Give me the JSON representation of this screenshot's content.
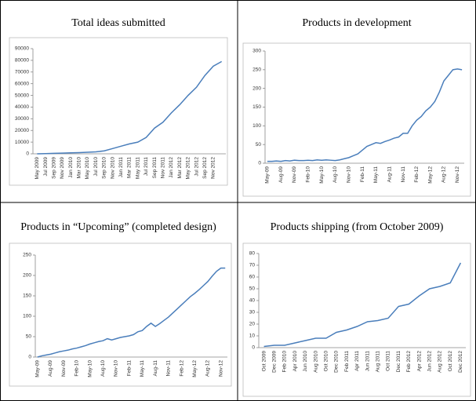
{
  "chart_data": [
    {
      "type": "line",
      "title": "Total ideas submitted",
      "color": "#4a7ebb",
      "categories": [
        "May 2009",
        "Jul 2009",
        "Sep 2009",
        "Nov 2009",
        "Jan 2010",
        "Mar 2010",
        "May 2010",
        "Jul 2010",
        "Sep 2010",
        "Nov 2010",
        "Jan 2011",
        "Mar 2011",
        "May 2011",
        "Jul 2011",
        "Sep 2011",
        "Nov 2011",
        "Jan 2012",
        "Mar 2012",
        "May 2012",
        "Jul 2012",
        "Sep 2012",
        "Nov 2012",
        null
      ],
      "values": [
        0,
        200,
        400,
        600,
        800,
        1000,
        1300,
        1700,
        2500,
        4500,
        6500,
        8500,
        10000,
        14000,
        22000,
        27000,
        35000,
        42000,
        50000,
        57000,
        67000,
        75000,
        79000
      ],
      "ylim": [
        0,
        90000
      ],
      "yticks": [
        0,
        10000,
        20000,
        30000,
        40000,
        50000,
        60000,
        70000,
        80000,
        90000
      ]
    },
    {
      "type": "line",
      "title": "Products in development",
      "color": "#4a7ebb",
      "categories": [
        "May-09",
        null,
        null,
        "Aug-09",
        null,
        null,
        "Nov-09",
        null,
        null,
        "Feb-10",
        null,
        null,
        "May-10",
        null,
        null,
        "Aug-10",
        null,
        null,
        "Nov-10",
        null,
        null,
        "Feb-11",
        null,
        null,
        "May-11",
        null,
        null,
        "Aug-11",
        null,
        null,
        "Nov-11",
        null,
        null,
        "Feb-12",
        null,
        null,
        "May-12",
        null,
        null,
        "Aug-12",
        null,
        null,
        "Nov-12",
        null
      ],
      "values": [
        5,
        5,
        6,
        5,
        7,
        6,
        8,
        7,
        7,
        8,
        7,
        9,
        8,
        9,
        8,
        7,
        9,
        12,
        15,
        20,
        25,
        35,
        45,
        50,
        55,
        53,
        58,
        62,
        67,
        70,
        80,
        80,
        100,
        115,
        125,
        140,
        150,
        165,
        190,
        220,
        235,
        250,
        252,
        250
      ],
      "ylim": [
        0,
        300
      ],
      "yticks": [
        0,
        50,
        100,
        150,
        200,
        250,
        300
      ]
    },
    {
      "type": "line",
      "title": "Products in “Upcoming” (completed design)",
      "color": "#4a7ebb",
      "categories": [
        "May-09",
        null,
        null,
        "Aug-09",
        null,
        null,
        "Nov-09",
        null,
        null,
        "Feb-10",
        null,
        null,
        "May-10",
        null,
        null,
        "Aug-10",
        null,
        null,
        "Nov-10",
        null,
        null,
        "Feb-11",
        null,
        null,
        "May-11",
        null,
        null,
        "Aug-11",
        null,
        null,
        "Nov-11",
        null,
        null,
        "Feb-12",
        null,
        null,
        "May-12",
        null,
        null,
        "Aug-12",
        null,
        null,
        "Nov-12",
        null
      ],
      "values": [
        0,
        3,
        5,
        7,
        10,
        13,
        15,
        17,
        20,
        22,
        25,
        28,
        32,
        35,
        38,
        40,
        45,
        42,
        45,
        48,
        50,
        52,
        55,
        62,
        65,
        75,
        83,
        75,
        82,
        90,
        98,
        108,
        118,
        128,
        138,
        148,
        156,
        165,
        175,
        185,
        198,
        210,
        218,
        218
      ],
      "ylim": [
        0,
        250
      ],
      "yticks": [
        0,
        50,
        100,
        150,
        200,
        250
      ]
    },
    {
      "type": "line",
      "title": "Products shipping (from October 2009)",
      "color": "#4a7ebb",
      "categories": [
        "Oct 2009",
        "Dec 2009",
        "Feb 2010",
        "Apr 2010",
        "Jun 2010",
        "Aug 2010",
        "Oct 2010",
        "Dec 2010",
        "Feb 2011",
        "Apr 2011",
        "Jun 2011",
        "Aug 2011",
        "Oct 2011",
        "Dec 2011",
        "Feb 2012",
        "Apr 2012",
        "Jun 2012",
        "Aug 2012",
        "Oct 2012",
        "Dec 2012"
      ],
      "values": [
        1,
        2,
        2,
        4,
        6,
        8,
        8,
        13,
        15,
        18,
        22,
        23,
        25,
        35,
        37,
        44,
        50,
        52,
        55,
        72
      ],
      "ylim": [
        0,
        80
      ],
      "yticks": [
        0,
        10,
        20,
        30,
        40,
        50,
        60,
        70,
        80
      ]
    }
  ]
}
